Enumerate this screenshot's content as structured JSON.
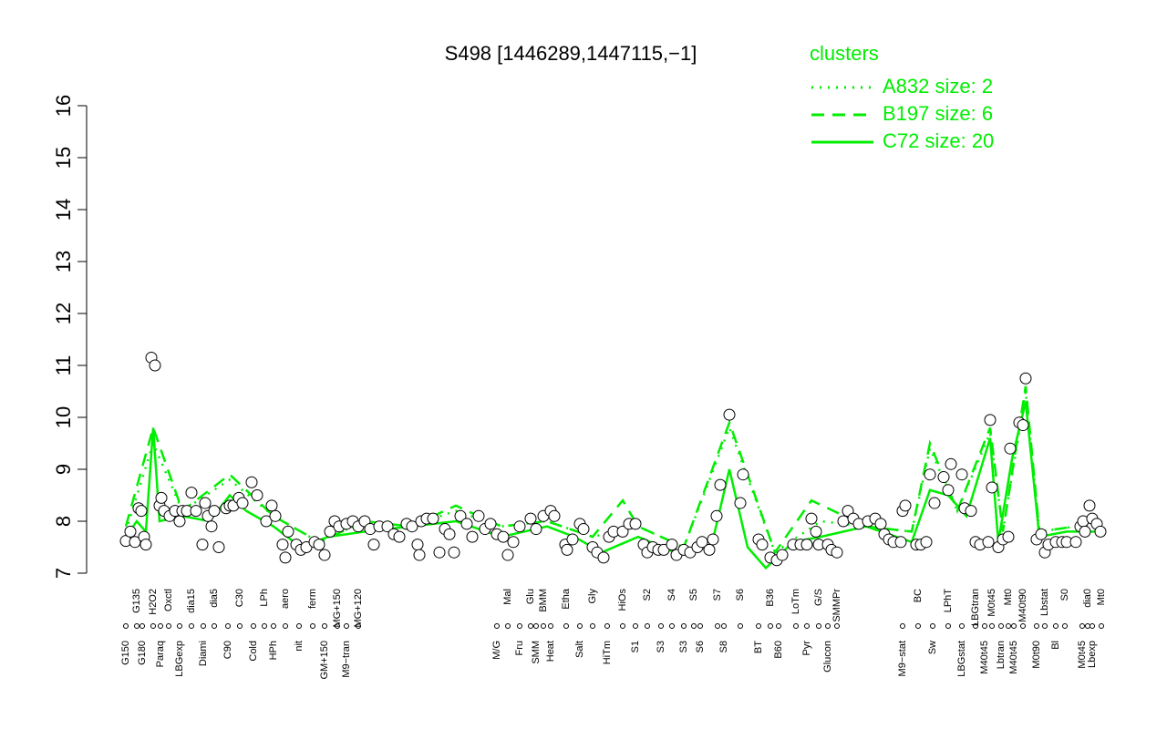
{
  "chart_data": {
    "type": "scatter",
    "title": "S498 [1446289,1447115,−1]",
    "legend_title": "clusters",
    "legend": "top-right",
    "xlim": [
      95,
      1225
    ],
    "ylim": [
      7,
      16
    ],
    "yticks": [
      7,
      8,
      9,
      10,
      11,
      12,
      13,
      14,
      15,
      16
    ],
    "xticks": [
      {
        "value": 138,
        "label": "G150"
      },
      {
        "value": 150,
        "label": "G135"
      },
      {
        "value": 156,
        "label": "G180"
      },
      {
        "value": 168,
        "label": "H2O2"
      },
      {
        "value": 176,
        "label": "Paraq"
      },
      {
        "value": 185,
        "label": "Oxctl"
      },
      {
        "value": 197,
        "label": "LBGexp"
      },
      {
        "value": 210,
        "label": "dia15"
      },
      {
        "value": 223,
        "label": "Diami"
      },
      {
        "value": 235,
        "label": "dia5"
      },
      {
        "value": 250,
        "label": "C90"
      },
      {
        "value": 263,
        "label": "C30"
      },
      {
        "value": 278,
        "label": "Cold"
      },
      {
        "value": 290,
        "label": "LPh"
      },
      {
        "value": 300,
        "label": "HPh"
      },
      {
        "value": 313,
        "label": "aero"
      },
      {
        "value": 328,
        "label": "nit"
      },
      {
        "value": 343,
        "label": "ferm"
      },
      {
        "value": 356,
        "label": "GM+150"
      },
      {
        "value": 370,
        "label": "MG+150"
      },
      {
        "value": 380,
        "label": "M9−tran"
      },
      {
        "value": 393,
        "label": "MG+120"
      },
      {
        "value": 545,
        "label": "M/G"
      },
      {
        "value": 557,
        "label": "Mal"
      },
      {
        "value": 570,
        "label": "Fru"
      },
      {
        "value": 582,
        "label": "Glu"
      },
      {
        "value": 588,
        "label": "SMM"
      },
      {
        "value": 596,
        "label": "BMM"
      },
      {
        "value": 604,
        "label": "Heat"
      },
      {
        "value": 621,
        "label": "Etha"
      },
      {
        "value": 636,
        "label": "Salt"
      },
      {
        "value": 650,
        "label": "Gly"
      },
      {
        "value": 666,
        "label": "HiTm"
      },
      {
        "value": 683,
        "label": "HiOs"
      },
      {
        "value": 697,
        "label": "S1"
      },
      {
        "value": 710,
        "label": "S2"
      },
      {
        "value": 725,
        "label": "S3"
      },
      {
        "value": 737,
        "label": "S4"
      },
      {
        "value": 750,
        "label": "S3"
      },
      {
        "value": 761,
        "label": "S5"
      },
      {
        "value": 768,
        "label": "S6"
      },
      {
        "value": 787,
        "label": "S7"
      },
      {
        "value": 794,
        "label": "S8"
      },
      {
        "value": 812,
        "label": "S6"
      },
      {
        "value": 832,
        "label": "BT"
      },
      {
        "value": 845,
        "label": "B36"
      },
      {
        "value": 854,
        "label": "B60"
      },
      {
        "value": 873,
        "label": "LoTm"
      },
      {
        "value": 885,
        "label": "Pyr"
      },
      {
        "value": 898,
        "label": "G/S"
      },
      {
        "value": 908,
        "label": "Glucon"
      },
      {
        "value": 918,
        "label": "SMMPr"
      },
      {
        "value": 990,
        "label": "M9−stat"
      },
      {
        "value": 1007,
        "label": "BC"
      },
      {
        "value": 1023,
        "label": "Sw"
      },
      {
        "value": 1040,
        "label": "LPhT"
      },
      {
        "value": 1055,
        "label": "LBGstat"
      },
      {
        "value": 1070,
        "label": "LBGtran"
      },
      {
        "value": 1080,
        "label": "M40t45"
      },
      {
        "value": 1088,
        "label": "M0t45"
      },
      {
        "value": 1098,
        "label": "Lbtran"
      },
      {
        "value": 1106,
        "label": "Mt0"
      },
      {
        "value": 1112,
        "label": "M40t45"
      },
      {
        "value": 1122,
        "label": "M40t90"
      },
      {
        "value": 1137,
        "label": "M0t90"
      },
      {
        "value": 1146,
        "label": "Lbstat"
      },
      {
        "value": 1158,
        "label": "Bl"
      },
      {
        "value": 1168,
        "label": "S0"
      },
      {
        "value": 1187,
        "label": "M0t45"
      },
      {
        "value": 1193,
        "label": "dia0"
      },
      {
        "value": 1198,
        "label": "Lbexp"
      },
      {
        "value": 1208,
        "label": "Mt0"
      }
    ],
    "points": {
      "color": "#000000",
      "x": [
        138,
        143,
        148,
        152,
        155,
        158,
        160,
        166,
        170,
        175,
        177,
        180,
        186,
        192,
        197,
        200,
        205,
        210,
        215,
        222,
        225,
        228,
        232,
        235,
        240,
        248,
        252,
        256,
        262,
        266,
        276,
        282,
        292,
        298,
        302,
        310,
        313,
        316,
        325,
        330,
        336,
        345,
        350,
        356,
        362,
        367,
        372,
        380,
        387,
        393,
        400,
        406,
        410,
        416,
        425,
        432,
        438,
        446,
        452,
        458,
        460,
        462,
        468,
        475,
        482,
        488,
        493,
        498,
        505,
        512,
        518,
        525,
        532,
        538,
        545,
        552,
        557,
        563,
        570,
        582,
        588,
        596,
        604,
        608,
        620,
        622,
        628,
        636,
        640,
        650,
        655,
        662,
        668,
        673,
        683,
        690,
        697,
        706,
        710,
        716,
        722,
        728,
        737,
        742,
        750,
        757,
        765,
        770,
        778,
        782,
        786,
        790,
        800,
        812,
        815,
        832,
        836,
        845,
        852,
        858,
        870,
        878,
        885,
        890,
        895,
        898,
        908,
        912,
        918,
        925,
        930,
        936,
        942,
        952,
        960,
        966,
        970,
        975,
        980,
        988,
        990,
        993,
        1005,
        1010,
        1016,
        1020,
        1025,
        1035,
        1040,
        1043,
        1055,
        1058,
        1065,
        1070,
        1075,
        1084,
        1086,
        1088,
        1095,
        1100,
        1106,
        1108,
        1118,
        1122,
        1125,
        1137,
        1142,
        1146,
        1150,
        1158,
        1165,
        1170,
        1180,
        1185,
        1188,
        1190,
        1195,
        1198,
        1203,
        1207
      ],
      "values": [
        7.62,
        7.8,
        7.6,
        8.25,
        8.2,
        7.7,
        7.55,
        11.15,
        11.0,
        8.3,
        8.45,
        8.2,
        8.1,
        8.2,
        8.0,
        8.2,
        8.2,
        8.55,
        8.2,
        7.55,
        8.35,
        8.1,
        7.9,
        8.2,
        7.5,
        8.25,
        8.3,
        8.3,
        8.45,
        8.35,
        8.75,
        8.5,
        8.0,
        8.3,
        8.1,
        7.55,
        7.3,
        7.8,
        7.55,
        7.45,
        7.5,
        7.6,
        7.55,
        7.35,
        7.8,
        8.0,
        7.9,
        7.95,
        8.0,
        7.9,
        8.0,
        7.85,
        7.55,
        7.9,
        7.9,
        7.75,
        7.7,
        7.95,
        7.9,
        7.55,
        7.35,
        8.0,
        8.05,
        8.05,
        7.4,
        7.85,
        7.75,
        7.4,
        8.1,
        7.95,
        7.7,
        8.1,
        7.85,
        7.95,
        7.75,
        7.7,
        7.35,
        7.6,
        7.9,
        8.05,
        7.85,
        8.1,
        8.2,
        8.1,
        7.55,
        7.45,
        7.65,
        7.95,
        7.85,
        7.5,
        7.4,
        7.3,
        7.7,
        7.8,
        7.8,
        7.95,
        7.95,
        7.55,
        7.4,
        7.5,
        7.45,
        7.45,
        7.55,
        7.35,
        7.45,
        7.4,
        7.5,
        7.6,
        7.45,
        7.65,
        8.1,
        8.7,
        10.05,
        8.35,
        8.9,
        7.65,
        7.55,
        7.3,
        7.25,
        7.35,
        7.55,
        7.55,
        7.55,
        8.05,
        7.8,
        7.55,
        7.55,
        7.45,
        7.4,
        8.0,
        8.2,
        8.05,
        7.95,
        8.0,
        8.05,
        7.95,
        7.75,
        7.65,
        7.6,
        7.6,
        8.2,
        8.3,
        7.55,
        7.55,
        7.6,
        8.9,
        8.35,
        8.85,
        8.6,
        9.1,
        8.9,
        8.25,
        8.2,
        7.6,
        7.55,
        7.6,
        9.95,
        8.65,
        7.5,
        7.65,
        7.7,
        9.4,
        9.9,
        9.85,
        10.75,
        7.65,
        7.75,
        7.4,
        7.55,
        7.6,
        7.6,
        7.6,
        7.6,
        7.9,
        8.0,
        7.8,
        8.3,
        8.05,
        7.95,
        7.8
      ]
    },
    "series": [
      {
        "name": "A832 size: 2",
        "style": "dotted",
        "color": "#00ee00",
        "x": [
          138,
          168,
          200,
          252,
          300,
          350,
          400,
          450,
          500,
          550,
          600,
          650,
          700,
          750,
          800,
          850,
          900,
          950,
          1000,
          1020,
          1050,
          1086,
          1100,
          1125,
          1140,
          1180,
          1207
        ],
        "values": [
          7.8,
          9.5,
          8.2,
          8.8,
          8.1,
          7.6,
          8.0,
          7.9,
          8.2,
          7.9,
          8.0,
          7.7,
          7.9,
          7.5,
          9.8,
          7.4,
          8.0,
          7.9,
          7.8,
          9.4,
          8.2,
          9.7,
          7.8,
          10.5,
          7.8,
          7.9,
          7.9
        ]
      },
      {
        "name": "B197 size: 6",
        "style": "dashed",
        "color": "#00ee00",
        "x": [
          138,
          168,
          200,
          252,
          300,
          350,
          400,
          450,
          500,
          550,
          600,
          650,
          683,
          700,
          750,
          800,
          850,
          890,
          950,
          1000,
          1020,
          1050,
          1086,
          1100,
          1125,
          1140,
          1180,
          1207
        ],
        "values": [
          7.9,
          9.8,
          8.2,
          8.9,
          8.1,
          7.6,
          8.0,
          7.9,
          8.3,
          7.9,
          8.0,
          7.7,
          8.4,
          7.9,
          7.5,
          9.9,
          7.4,
          8.4,
          7.9,
          7.8,
          9.5,
          8.2,
          9.8,
          7.8,
          10.6,
          7.8,
          7.9,
          7.9
        ]
      },
      {
        "name": "C72 size: 20",
        "style": "solid",
        "color": "#00ee00",
        "x": [
          138,
          150,
          160,
          168,
          175,
          200,
          230,
          252,
          270,
          300,
          330,
          360,
          400,
          450,
          500,
          550,
          600,
          630,
          660,
          700,
          740,
          780,
          800,
          820,
          840,
          870,
          900,
          950,
          1000,
          1020,
          1040,
          1060,
          1086,
          1095,
          1110,
          1125,
          1140,
          1170,
          1207
        ],
        "values": [
          7.7,
          8.0,
          7.8,
          9.8,
          8.0,
          8.1,
          8.0,
          8.5,
          8.2,
          7.9,
          7.5,
          7.7,
          7.8,
          7.9,
          8.0,
          7.7,
          7.9,
          7.7,
          7.4,
          7.7,
          7.4,
          7.5,
          9.0,
          7.5,
          7.1,
          7.6,
          7.7,
          7.9,
          7.6,
          8.6,
          8.5,
          8.1,
          9.6,
          7.6,
          9.2,
          10.3,
          7.7,
          7.8,
          7.8
        ]
      }
    ]
  }
}
